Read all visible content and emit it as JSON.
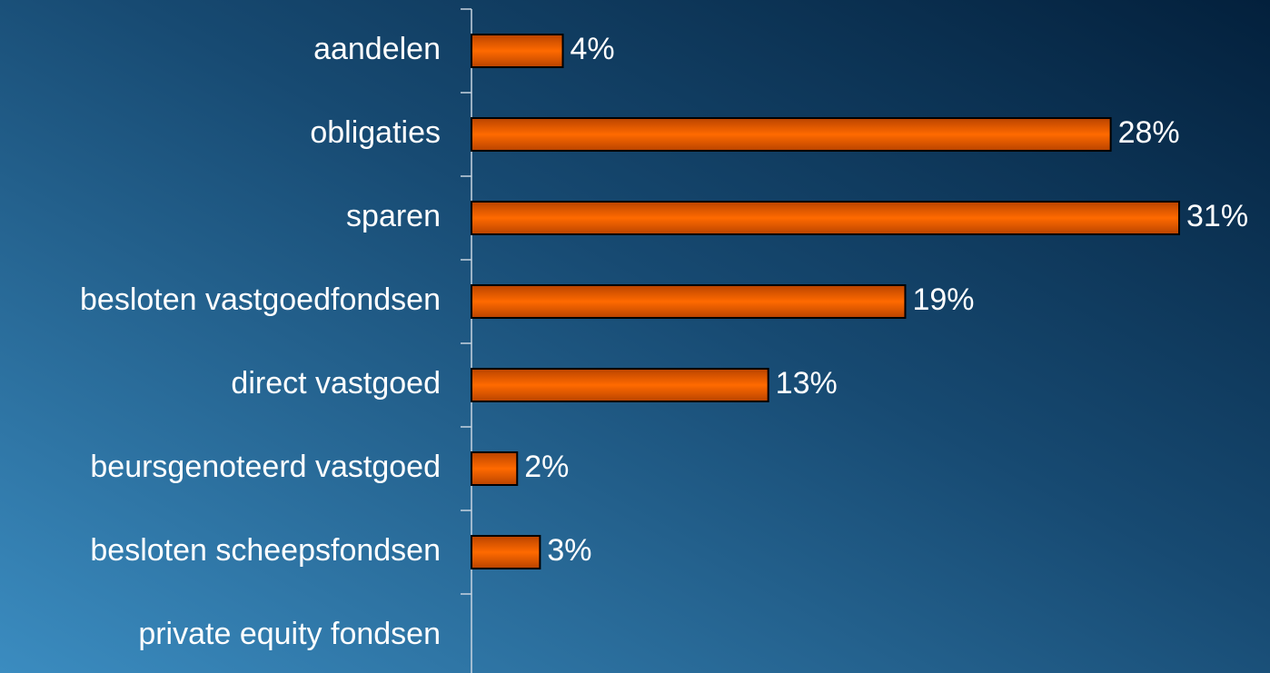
{
  "chart_data": {
    "type": "bar",
    "orientation": "horizontal",
    "categories": [
      "aandelen",
      "obligaties",
      "sparen",
      "besloten vastgoedfondsen",
      "direct vastgoed",
      "beursgenoteerd vastgoed",
      "besloten scheepsfondsen",
      "private equity fondsen"
    ],
    "values": [
      4,
      28,
      31,
      19,
      13,
      2,
      3,
      null
    ],
    "value_labels": [
      "4%",
      "28%",
      "31%",
      "19%",
      "13%",
      "2%",
      "3%",
      null
    ],
    "color": "#ff6600"
  }
}
